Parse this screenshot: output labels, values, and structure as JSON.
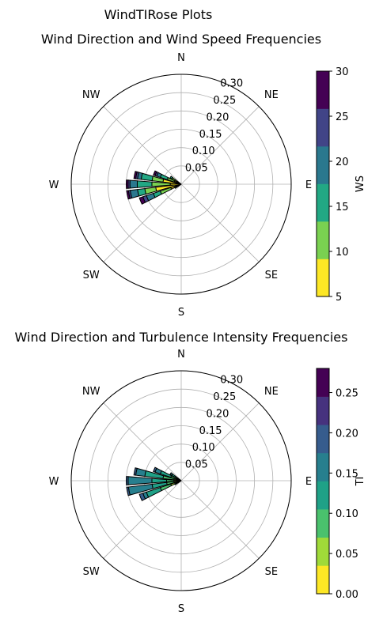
{
  "suptitle": "WindTIRose Plots",
  "chart_data": [
    {
      "type": "polar-stacked-bar",
      "title": "Wind Direction and Wind Speed Frequencies",
      "directions": [
        "N",
        "NE",
        "E",
        "SE",
        "S",
        "SW",
        "W",
        "NW"
      ],
      "rlim": [
        0,
        0.3
      ],
      "rticks": [
        "0.05",
        "0.10",
        "0.15",
        "0.20",
        "0.25",
        "0.30"
      ],
      "grid": true,
      "colorbar": {
        "label": "WS",
        "range": [
          5,
          30
        ],
        "ticks": [
          "5",
          "10",
          "15",
          "20",
          "25",
          "30"
        ],
        "colors": [
          "#fde725",
          "#7ad151",
          "#22a884",
          "#2a788e",
          "#414487",
          "#440154"
        ]
      },
      "bars": [
        {
          "angle_deg": 247.5,
          "segments": [
            0.03,
            0.06,
            0.08,
            0.1,
            0.11,
            0.12
          ]
        },
        {
          "angle_deg": 258.75,
          "segments": [
            0.07,
            0.1,
            0.12,
            0.14,
            0.145,
            0.15
          ]
        },
        {
          "angle_deg": 270,
          "segments": [
            0.03,
            0.08,
            0.12,
            0.14,
            0.145,
            0.15
          ]
        },
        {
          "angle_deg": 281.25,
          "segments": [
            0.05,
            0.08,
            0.11,
            0.12,
            0.125,
            0.13
          ]
        },
        {
          "angle_deg": 292.5,
          "segments": [
            0.02,
            0.04,
            0.06,
            0.07,
            0.075,
            0.08
          ]
        },
        {
          "angle_deg": 303.75,
          "segments": [
            0.02,
            0.03,
            0.035,
            0.035,
            0.035,
            0.035
          ]
        },
        {
          "angle_deg": 240,
          "segments": [
            0.01,
            0.015,
            0.02,
            0.02,
            0.02,
            0.02
          ]
        }
      ]
    },
    {
      "type": "polar-stacked-bar",
      "title": "Wind Direction and Turbulence Intensity Frequencies",
      "directions": [
        "N",
        "NE",
        "E",
        "SE",
        "S",
        "SW",
        "W",
        "NW"
      ],
      "rlim": [
        0,
        0.3
      ],
      "rticks": [
        "0.05",
        "0.10",
        "0.15",
        "0.20",
        "0.25",
        "0.30"
      ],
      "grid": true,
      "colorbar": {
        "label": "TI",
        "range": [
          0,
          0.28
        ],
        "ticks": [
          "0.00",
          "0.05",
          "0.10",
          "0.15",
          "0.20",
          "0.25"
        ],
        "colors": [
          "#fde725",
          "#a0da39",
          "#4ac16d",
          "#1fa187",
          "#277f8e",
          "#365c8d",
          "#46327e",
          "#440154"
        ]
      },
      "bars": [
        {
          "angle_deg": 247.5,
          "segments": [
            0.01,
            0.03,
            0.06,
            0.1,
            0.11,
            0.12
          ]
        },
        {
          "angle_deg": 258.75,
          "segments": [
            0.01,
            0.02,
            0.04,
            0.08,
            0.145,
            0.15
          ]
        },
        {
          "angle_deg": 270,
          "segments": [
            0.01,
            0.02,
            0.04,
            0.08,
            0.145,
            0.15
          ]
        },
        {
          "angle_deg": 281.25,
          "segments": [
            0.01,
            0.02,
            0.05,
            0.1,
            0.125,
            0.13
          ]
        },
        {
          "angle_deg": 292.5,
          "segments": [
            0.005,
            0.01,
            0.03,
            0.06,
            0.075,
            0.08
          ]
        },
        {
          "angle_deg": 303.75,
          "segments": [
            0.005,
            0.01,
            0.02,
            0.03,
            0.035,
            0.035
          ]
        },
        {
          "angle_deg": 240,
          "segments": [
            0.005,
            0.01,
            0.015,
            0.02,
            0.02,
            0.02
          ]
        }
      ]
    }
  ]
}
